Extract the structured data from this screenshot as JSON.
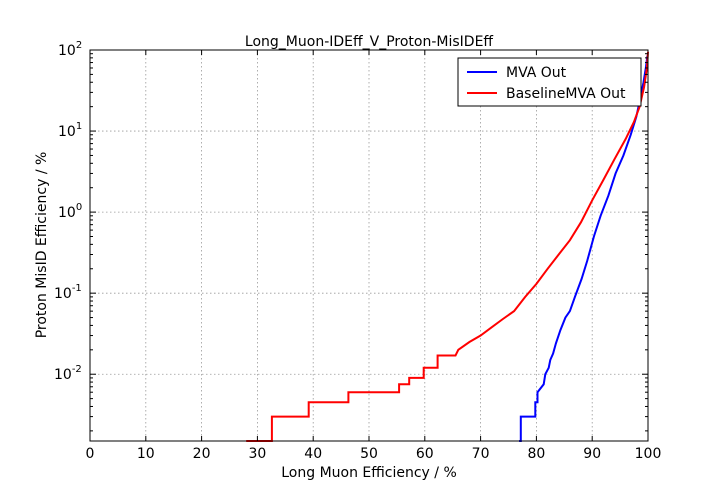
{
  "chart_data": {
    "type": "line",
    "title": "Long_Muon-IDEff_V_Proton-MisIDEff",
    "xlabel": "Long Muon Efficiency / %",
    "ylabel": "Proton MisID Efficiency / %",
    "xlim": [
      0,
      100
    ],
    "ylim": [
      0.0015,
      100
    ],
    "yscale": "log",
    "grid": true,
    "legend_position": "top-right",
    "xticks": [
      "0",
      "10",
      "20",
      "30",
      "40",
      "50",
      "60",
      "70",
      "80",
      "90",
      "100"
    ],
    "yticks": [
      {
        "base": "10",
        "exp": "-2",
        "value": 0.01
      },
      {
        "base": "10",
        "exp": "-1",
        "value": 0.1
      },
      {
        "base": "10",
        "exp": "0",
        "value": 1
      },
      {
        "base": "10",
        "exp": "1",
        "value": 10
      },
      {
        "base": "10",
        "exp": "2",
        "value": 100
      }
    ],
    "series": [
      {
        "name": "MVA Out",
        "color": "#0000ff",
        "x": [
          76.9,
          77.2,
          77.2,
          79.8,
          79.8,
          80.2,
          80.2,
          81.3,
          81.6,
          82.2,
          82.5,
          83.0,
          83.5,
          84.3,
          85.2,
          86.0,
          86.9,
          88.1,
          89.1,
          90.3,
          91.5,
          92.9,
          94.2,
          95.6,
          96.9,
          97.9,
          98.6,
          99.2,
          99.6,
          99.9
        ],
        "y": [
          0.0015,
          0.0015,
          0.003,
          0.003,
          0.0045,
          0.0045,
          0.006,
          0.0075,
          0.01,
          0.012,
          0.015,
          0.018,
          0.024,
          0.035,
          0.05,
          0.06,
          0.09,
          0.15,
          0.25,
          0.5,
          0.9,
          1.6,
          3.0,
          5.0,
          9.0,
          15.0,
          25.0,
          40.0,
          60.0,
          85.0
        ]
      },
      {
        "name": "BaselineMVA Out",
        "color": "#ff0000",
        "x": [
          28.0,
          32.6,
          32.6,
          39.2,
          39.2,
          46.3,
          46.3,
          55.4,
          55.4,
          57.2,
          57.2,
          59.8,
          59.8,
          62.3,
          62.3,
          65.5,
          66.0,
          68.0,
          70.0,
          72.0,
          74.0,
          76.0,
          78.0,
          80.0,
          82.0,
          84.0,
          86.0,
          88.0,
          90.0,
          92.0,
          94.0,
          96.0,
          97.5,
          98.5,
          99.3,
          99.8,
          100.0
        ],
        "y": [
          0.0015,
          0.0015,
          0.003,
          0.003,
          0.0045,
          0.0045,
          0.006,
          0.006,
          0.0075,
          0.0075,
          0.009,
          0.009,
          0.012,
          0.012,
          0.017,
          0.017,
          0.02,
          0.025,
          0.03,
          0.038,
          0.048,
          0.06,
          0.09,
          0.13,
          0.2,
          0.3,
          0.45,
          0.75,
          1.4,
          2.5,
          4.5,
          8.0,
          13.0,
          20.0,
          35.0,
          60.0,
          95.0
        ]
      }
    ]
  }
}
